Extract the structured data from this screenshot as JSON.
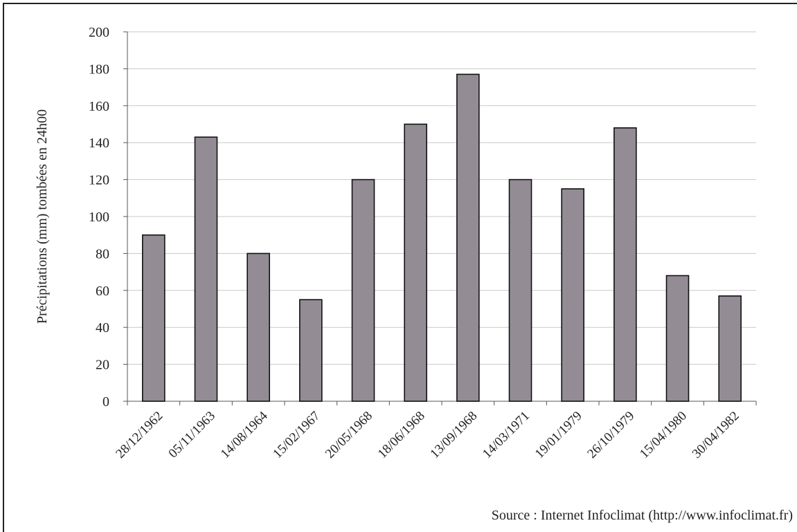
{
  "chart_data": {
    "type": "bar",
    "categories": [
      "28/12/1962",
      "05/11/1963",
      "14/08/1964",
      "15/02/1967",
      "20/05/1968",
      "18/06/1968",
      "13/09/1968",
      "14/03/1971",
      "19/01/1979",
      "26/10/1979",
      "15/04/1980",
      "30/04/1982"
    ],
    "values": [
      90,
      143,
      80,
      55,
      120,
      150,
      177,
      120,
      115,
      148,
      68,
      57
    ],
    "ylabel": "Précipitations (mm) tombées en 24h00",
    "ylim": [
      0,
      200
    ],
    "yticks": [
      0,
      20,
      40,
      60,
      80,
      100,
      120,
      140,
      160,
      180,
      200
    ],
    "grid": true,
    "bar_color": "#938c95"
  },
  "source_note": "Source : Internet Infoclimat (http://www.infoclimat.fr)"
}
